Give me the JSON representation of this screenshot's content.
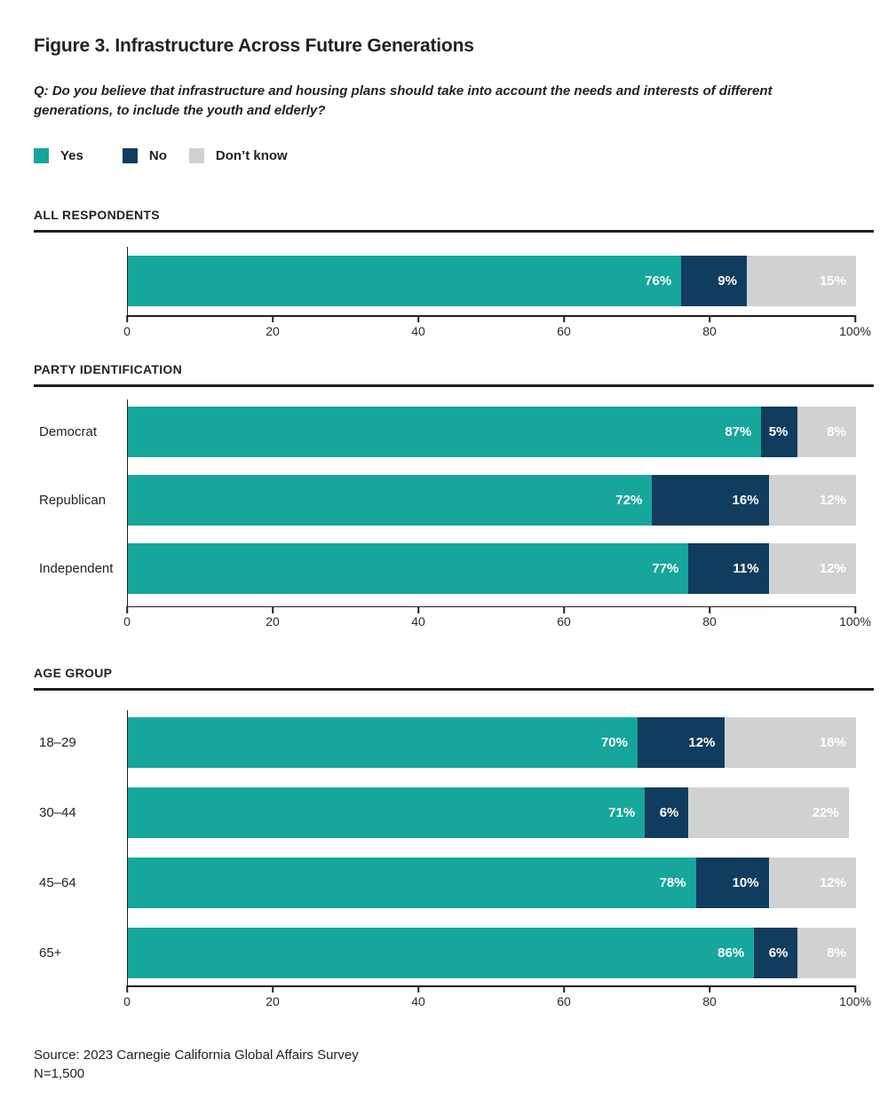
{
  "figure": {
    "title": "Figure 3. Infrastructure Across Future Generations",
    "question": "Q: Do you believe that infrastructure and housing plans should take into account the needs and interests of different generations, to include the youth and elderly?",
    "question_lines": [
      "Q: Do you believe that infrastructure and housing plans should take into account the needs and interests of different",
      "generations, to include the youth and elderly?"
    ],
    "source_lines": [
      "Source: 2023 Carnegie California Global Affairs Survey",
      "N=1,500"
    ]
  },
  "legend": [
    {
      "label": "Yes",
      "color": "#16a69c"
    },
    {
      "label": "No",
      "color": "#103c5e"
    },
    {
      "label": "Don’t know",
      "color": "#d0d1d3"
    }
  ],
  "colors": {
    "yes": "#16a69c",
    "no": "#103c5e",
    "dont_know": "#d0d1d3",
    "text": "#231f20",
    "rule": "#1d1d1b"
  },
  "chart_data": [
    {
      "type": "bar",
      "orientation": "horizontal",
      "stacked": true,
      "section": "ALL RESPONDENTS",
      "categories": [
        ""
      ],
      "series": [
        {
          "name": "Yes",
          "key": "yes",
          "color": "#16a69c",
          "values": [
            76
          ]
        },
        {
          "name": "No",
          "key": "no",
          "color": "#103c5e",
          "values": [
            9
          ]
        },
        {
          "name": "Don’t know",
          "key": "dont-know",
          "color": "#d0d1d3",
          "values": [
            15
          ]
        }
      ],
      "label_suffix": "%",
      "xlim": [
        0,
        100
      ],
      "xticks": [
        "0",
        "20",
        "40",
        "60",
        "80",
        "100%"
      ]
    },
    {
      "type": "bar",
      "orientation": "horizontal",
      "stacked": true,
      "section": "PARTY IDENTIFICATION",
      "categories": [
        "Democrat",
        "Republican",
        "Independent"
      ],
      "series": [
        {
          "name": "Yes",
          "key": "yes",
          "color": "#16a69c",
          "values": [
            87,
            72,
            77
          ]
        },
        {
          "name": "No",
          "key": "no",
          "color": "#103c5e",
          "values": [
            5,
            16,
            11
          ]
        },
        {
          "name": "Don’t know",
          "key": "dont-know",
          "color": "#d0d1d3",
          "values": [
            8,
            12,
            12
          ]
        }
      ],
      "label_suffix": "%",
      "xlim": [
        0,
        100
      ],
      "xticks": [
        "0",
        "20",
        "40",
        "60",
        "80",
        "100%"
      ]
    },
    {
      "type": "bar",
      "orientation": "horizontal",
      "stacked": true,
      "section": "AGE GROUP",
      "categories": [
        "18–29",
        "30–44",
        "45–64",
        "65+"
      ],
      "series": [
        {
          "name": "Yes",
          "key": "yes",
          "color": "#16a69c",
          "values": [
            70,
            71,
            78,
            86
          ]
        },
        {
          "name": "No",
          "key": "no",
          "color": "#103c5e",
          "values": [
            12,
            6,
            10,
            6
          ]
        },
        {
          "name": "Don’t know",
          "key": "dont-know",
          "color": "#d0d1d3",
          "values": [
            18,
            22,
            12,
            8
          ]
        }
      ],
      "label_suffix": "%",
      "xlim": [
        0,
        100
      ],
      "xticks": [
        "0",
        "20",
        "40",
        "60",
        "80",
        "100%"
      ]
    }
  ]
}
